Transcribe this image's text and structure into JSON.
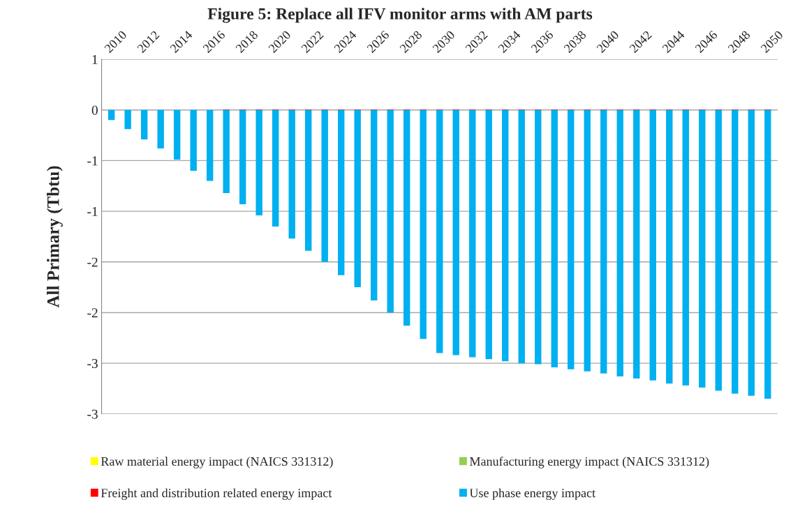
{
  "chart_data": {
    "type": "bar",
    "stacked": true,
    "title": "Figure 5: Replace all IFV monitor arms with AM parts",
    "ylabel": "All Primary (Tbtu)",
    "categories": [
      "2010",
      null,
      "2012",
      null,
      "2014",
      null,
      "2016",
      null,
      "2018",
      null,
      "2020",
      null,
      "2022",
      null,
      "2024",
      null,
      "2026",
      null,
      "2028",
      null,
      "2030",
      null,
      "2032",
      null,
      "2034",
      null,
      "2036",
      null,
      "2038",
      null,
      "2040",
      null,
      "2042",
      null,
      "2044",
      null,
      "2046",
      null,
      "2048",
      null,
      "2050"
    ],
    "series": [
      {
        "name": "Raw material energy impact (NAICS 331312)",
        "color": "#ffff00",
        "values": [
          0,
          0,
          0,
          0,
          0,
          0,
          0,
          0,
          0,
          0,
          0,
          0,
          0,
          0,
          0,
          0,
          0,
          0,
          0,
          0,
          0,
          0,
          0,
          0,
          0,
          0,
          0,
          0,
          0,
          0,
          0,
          0,
          0,
          0,
          0,
          0,
          0,
          0,
          0,
          0,
          0
        ]
      },
      {
        "name": "Manufacturing energy impact (NAICS 331312)",
        "color": "#92d050",
        "values": [
          0,
          0,
          0,
          0,
          0,
          0,
          0,
          0,
          0,
          0,
          0,
          0,
          0,
          0,
          0,
          0,
          0,
          0,
          0,
          0,
          0,
          0,
          0,
          0,
          0,
          0,
          0,
          0,
          0,
          0,
          0,
          0,
          0,
          0,
          0,
          0,
          0,
          0,
          0,
          0,
          0
        ]
      },
      {
        "name": "Freight and distribution related energy impact",
        "color": "#ff0000",
        "values": [
          0,
          0,
          0,
          0,
          0,
          0,
          0,
          0.005,
          0.005,
          0.005,
          0.005,
          0.005,
          0.005,
          0.005,
          0.005,
          0.005,
          0.005,
          0.005,
          0.005,
          0.005,
          0.005,
          0.005,
          0.005,
          0.005,
          0.005,
          0.005,
          0.005,
          0.005,
          0.005,
          0.005,
          0.005,
          0.005,
          0.005,
          0.005,
          0.005,
          0.005,
          0.005,
          0.005,
          0.005,
          0.005,
          0.005
        ]
      },
      {
        "name": "Use phase energy impact",
        "color": "#00b0f0",
        "values": [
          -0.1,
          -0.19,
          -0.29,
          -0.38,
          -0.49,
          -0.6,
          -0.7,
          -0.82,
          -0.93,
          -1.04,
          -1.15,
          -1.27,
          -1.39,
          -1.5,
          -1.63,
          -1.75,
          -1.88,
          -2.0,
          -2.13,
          -2.26,
          -2.4,
          -2.42,
          -2.44,
          -2.46,
          -2.48,
          -2.5,
          -2.51,
          -2.54,
          -2.56,
          -2.58,
          -2.6,
          -2.63,
          -2.65,
          -2.67,
          -2.7,
          -2.72,
          -2.74,
          -2.77,
          -2.8,
          -2.82,
          -2.85
        ]
      }
    ],
    "ylim": [
      -3,
      0.5
    ],
    "yticks": [
      {
        "value": 0.5,
        "label": "1"
      },
      0,
      {
        "value": -0.5,
        "label": "-1"
      },
      -1,
      {
        "value": -1.5,
        "label": "-2"
      },
      -2,
      {
        "value": -2.5,
        "label": "-3"
      },
      -3
    ],
    "grid": "y",
    "legend": "bottom"
  }
}
